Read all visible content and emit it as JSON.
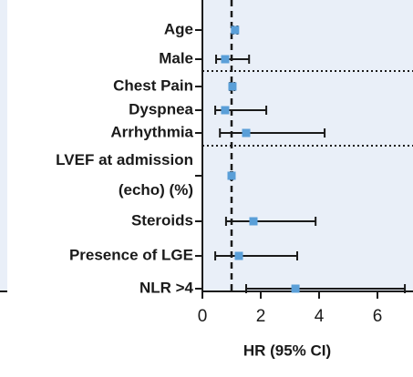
{
  "chart_data": {
    "type": "forest",
    "categories": [
      [
        "Age"
      ],
      [
        "Male"
      ],
      [
        "Chest Pain"
      ],
      [
        "Dyspnea"
      ],
      [
        "Arrhythmia"
      ],
      [
        "LVEF at admission",
        "(echo) (%)"
      ],
      [
        "Steroids"
      ],
      [
        "Presence of LGE"
      ],
      [
        "NLR >4"
      ]
    ],
    "values": [
      1.12,
      0.78,
      1.03,
      0.78,
      1.5,
      1.0,
      1.75,
      1.25,
      3.19
    ],
    "lower": [
      1.05,
      0.47,
      0.95,
      0.44,
      0.6,
      0.97,
      0.81,
      0.44,
      1.5
    ],
    "upper": [
      1.2,
      1.6,
      1.1,
      2.19,
      4.19,
      1.03,
      3.88,
      3.25,
      6.94
    ],
    "color": "#5a9fd8",
    "reference": 1,
    "xlim": [
      0,
      7.2
    ],
    "xticks": [
      0,
      2,
      4,
      6
    ],
    "xlabel": "HR (95% CI)"
  }
}
